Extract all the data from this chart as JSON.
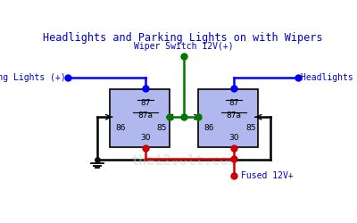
{
  "title": "Headlights and Parking Lights on with Wipers",
  "title_color": "#0000cc",
  "title_fontsize": 8.5,
  "bg_color": "#ffffff",
  "relay_color": "#b0b8ee",
  "relay_edge": "#000000",
  "wiper_switch_label": "Wiper Switch 12V(+)",
  "parking_lights_label": "Parking Lights (+)",
  "headlights_label": "Headlights (+)",
  "fused_label": "Fused 12V+",
  "label_color": "#0000cc",
  "wire_blue": "#0000ff",
  "wire_green": "#007700",
  "wire_red": "#cc0000",
  "wire_black": "#000000",
  "dot_blue": "#0000ff",
  "dot_green": "#007700",
  "dot_red": "#cc0000",
  "dot_black": "#111111",
  "lw": 1.8,
  "dot_size": 5,
  "label_fs": 7,
  "pin_fs": 6.5,
  "r1x": 0.235,
  "r1y": 0.3,
  "r1w": 0.215,
  "r1h": 0.335,
  "r2x": 0.555,
  "r2y": 0.3,
  "r2w": 0.215,
  "r2h": 0.335
}
